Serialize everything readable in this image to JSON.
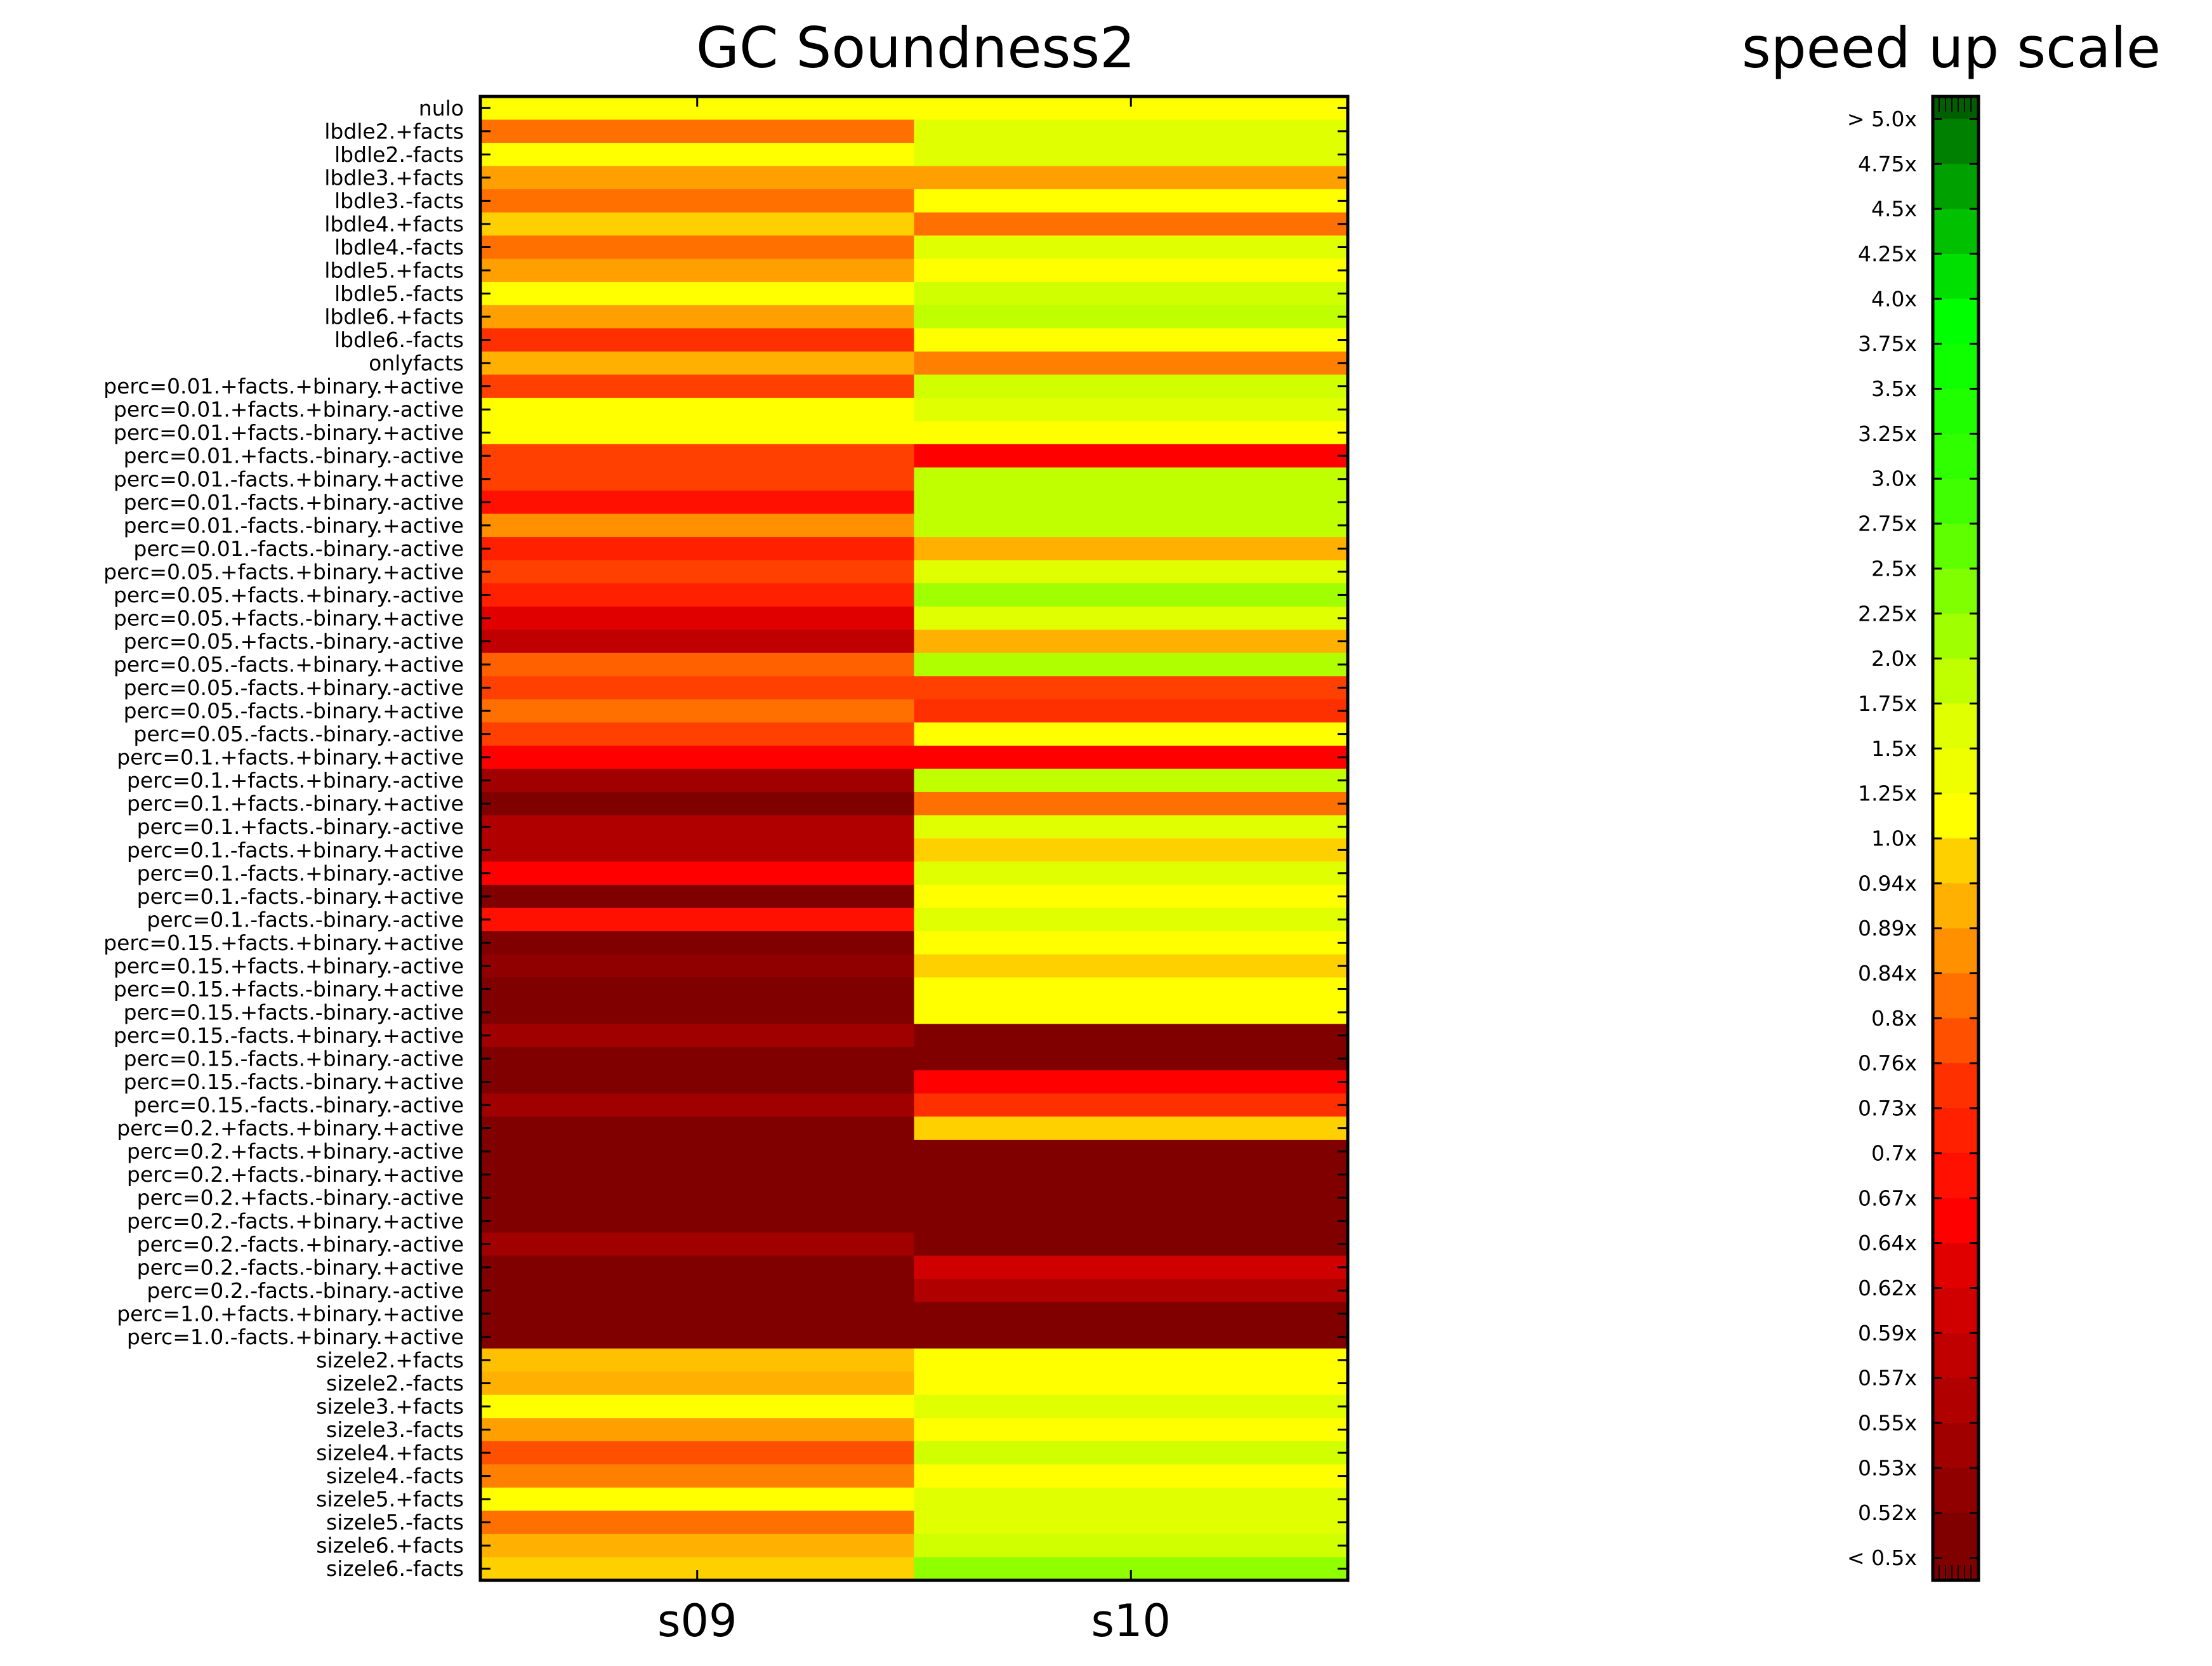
{
  "chart_data": [
    {
      "type": "heatmap",
      "title": "GC Soundness2",
      "xlabel": "",
      "ylabel": "",
      "columns": [
        "s09",
        "s10"
      ],
      "rows": [
        "nulo",
        "lbdle2.+facts",
        "lbdle2.-facts",
        "lbdle3.+facts",
        "lbdle3.-facts",
        "lbdle4.+facts",
        "lbdle4.-facts",
        "lbdle5.+facts",
        "lbdle5.-facts",
        "lbdle6.+facts",
        "lbdle6.-facts",
        "onlyfacts",
        "perc=0.01.+facts.+binary.+active",
        "perc=0.01.+facts.+binary.-active",
        "perc=0.01.+facts.-binary.+active",
        "perc=0.01.+facts.-binary.-active",
        "perc=0.01.-facts.+binary.+active",
        "perc=0.01.-facts.+binary.-active",
        "perc=0.01.-facts.-binary.+active",
        "perc=0.01.-facts.-binary.-active",
        "perc=0.05.+facts.+binary.+active",
        "perc=0.05.+facts.+binary.-active",
        "perc=0.05.+facts.-binary.+active",
        "perc=0.05.+facts.-binary.-active",
        "perc=0.05.-facts.+binary.+active",
        "perc=0.05.-facts.+binary.-active",
        "perc=0.05.-facts.-binary.+active",
        "perc=0.05.-facts.-binary.-active",
        "perc=0.1.+facts.+binary.+active",
        "perc=0.1.+facts.+binary.-active",
        "perc=0.1.+facts.-binary.+active",
        "perc=0.1.+facts.-binary.-active",
        "perc=0.1.-facts.+binary.+active",
        "perc=0.1.-facts.+binary.-active",
        "perc=0.1.-facts.-binary.+active",
        "perc=0.1.-facts.-binary.-active",
        "perc=0.15.+facts.+binary.+active",
        "perc=0.15.+facts.+binary.-active",
        "perc=0.15.+facts.-binary.+active",
        "perc=0.15.+facts.-binary.-active",
        "perc=0.15.-facts.+binary.+active",
        "perc=0.15.-facts.+binary.-active",
        "perc=0.15.-facts.-binary.+active",
        "perc=0.15.-facts.-binary.-active",
        "perc=0.2.+facts.+binary.+active",
        "perc=0.2.+facts.+binary.-active",
        "perc=0.2.+facts.-binary.+active",
        "perc=0.2.+facts.-binary.-active",
        "perc=0.2.-facts.+binary.+active",
        "perc=0.2.-facts.+binary.-active",
        "perc=0.2.-facts.-binary.+active",
        "perc=0.2.-facts.-binary.-active",
        "perc=1.0.+facts.+binary.+active",
        "perc=1.0.-facts.+binary.+active",
        "sizele2.+facts",
        "sizele2.-facts",
        "sizele3.+facts",
        "sizele3.-facts",
        "sizele4.+facts",
        "sizele4.-facts",
        "sizele5.+facts",
        "sizele5.-facts",
        "sizele6.+facts",
        "sizele6.-facts"
      ],
      "cell_colors": [
        [
          "#ffff00",
          "#ffff00"
        ],
        [
          "#ff7000",
          "#e0ff00"
        ],
        [
          "#ffff00",
          "#e0ff00"
        ],
        [
          "#ffa000",
          "#ffa000"
        ],
        [
          "#ff7000",
          "#ffff00"
        ],
        [
          "#ffd000",
          "#ff7000"
        ],
        [
          "#ff7000",
          "#e0ff00"
        ],
        [
          "#ffa000",
          "#ffff00"
        ],
        [
          "#ffff00",
          "#d0ff00"
        ],
        [
          "#ffa000",
          "#c0ff00"
        ],
        [
          "#ff3000",
          "#ffff00"
        ],
        [
          "#ffb000",
          "#ff8000"
        ],
        [
          "#ff4000",
          "#d0ff00"
        ],
        [
          "#ffff00",
          "#e0ff00"
        ],
        [
          "#ffff00",
          "#ffff00"
        ],
        [
          "#ff4000",
          "#ff0000"
        ],
        [
          "#ff4000",
          "#c0ff00"
        ],
        [
          "#ff1000",
          "#c0ff00"
        ],
        [
          "#ff9000",
          "#c0ff00"
        ],
        [
          "#ff2000",
          "#ffb000"
        ],
        [
          "#ff4000",
          "#e0ff00"
        ],
        [
          "#ff2000",
          "#a0ff00"
        ],
        [
          "#e00000",
          "#e0ff00"
        ],
        [
          "#c00000",
          "#ffb000"
        ],
        [
          "#ff6000",
          "#b0ff00"
        ],
        [
          "#ff4000",
          "#ff4000"
        ],
        [
          "#ff7000",
          "#ff3000"
        ],
        [
          "#ff4000",
          "#ffff00"
        ],
        [
          "#ff0000",
          "#ff0000"
        ],
        [
          "#a00000",
          "#c0ff00"
        ],
        [
          "#800000",
          "#ff7000"
        ],
        [
          "#b00000",
          "#e0ff00"
        ],
        [
          "#b00000",
          "#ffd000"
        ],
        [
          "#ff0000",
          "#e0ff00"
        ],
        [
          "#800000",
          "#ffff00"
        ],
        [
          "#ff1000",
          "#e0ff00"
        ],
        [
          "#800000",
          "#ffff00"
        ],
        [
          "#900000",
          "#ffd000"
        ],
        [
          "#800000",
          "#ffff00"
        ],
        [
          "#800000",
          "#ffff00"
        ],
        [
          "#a00000",
          "#800000"
        ],
        [
          "#800000",
          "#800000"
        ],
        [
          "#800000",
          "#ff0000"
        ],
        [
          "#a00000",
          "#ff3000"
        ],
        [
          "#800000",
          "#ffd000"
        ],
        [
          "#800000",
          "#800000"
        ],
        [
          "#800000",
          "#800000"
        ],
        [
          "#800000",
          "#800000"
        ],
        [
          "#800000",
          "#800000"
        ],
        [
          "#a00000",
          "#800000"
        ],
        [
          "#800000",
          "#d00000"
        ],
        [
          "#800000",
          "#b00000"
        ],
        [
          "#800000",
          "#800000"
        ],
        [
          "#800000",
          "#800000"
        ],
        [
          "#ffc000",
          "#ffff00"
        ],
        [
          "#ffb000",
          "#ffff00"
        ],
        [
          "#ffff00",
          "#e0ff00"
        ],
        [
          "#ffa000",
          "#ffff00"
        ],
        [
          "#ff5000",
          "#d0ff00"
        ],
        [
          "#ff8000",
          "#ffff00"
        ],
        [
          "#ffff00",
          "#e0ff00"
        ],
        [
          "#ff7000",
          "#e0ff00"
        ],
        [
          "#ffb000",
          "#d0ff00"
        ],
        [
          "#ffd000",
          "#90ff00"
        ]
      ]
    },
    {
      "type": "heatmap",
      "title": "speed up scale",
      "tick_labels": [
        "> 5.0x",
        "4.75x",
        "4.5x",
        "4.25x",
        "4.0x",
        "3.75x",
        "3.5x",
        "3.25x",
        "3.0x",
        "2.75x",
        "2.5x",
        "2.25x",
        "2.0x",
        "1.75x",
        "1.5x",
        "1.25x",
        "1.0x",
        "0.94x",
        "0.89x",
        "0.84x",
        "0.8x",
        "0.76x",
        "0.73x",
        "0.7x",
        "0.67x",
        "0.64x",
        "0.62x",
        "0.59x",
        "0.57x",
        "0.55x",
        "0.53x",
        "0.52x",
        "< 0.5x"
      ],
      "tick_colors": [
        "#006000",
        "#008000",
        "#00a000",
        "#00c000",
        "#00e000",
        "#00ff00",
        "#10ff00",
        "#20ff00",
        "#30ff00",
        "#40ff00",
        "#60ff00",
        "#80ff00",
        "#a0ff00",
        "#c0ff00",
        "#e0ff00",
        "#f0ff00",
        "#ffff00",
        "#ffd000",
        "#ffb000",
        "#ff9000",
        "#ff7000",
        "#ff5000",
        "#ff3000",
        "#ff2000",
        "#ff1000",
        "#ff0000",
        "#e00000",
        "#d00000",
        "#c00000",
        "#b00000",
        "#a00000",
        "#900000",
        "#800000"
      ]
    }
  ]
}
